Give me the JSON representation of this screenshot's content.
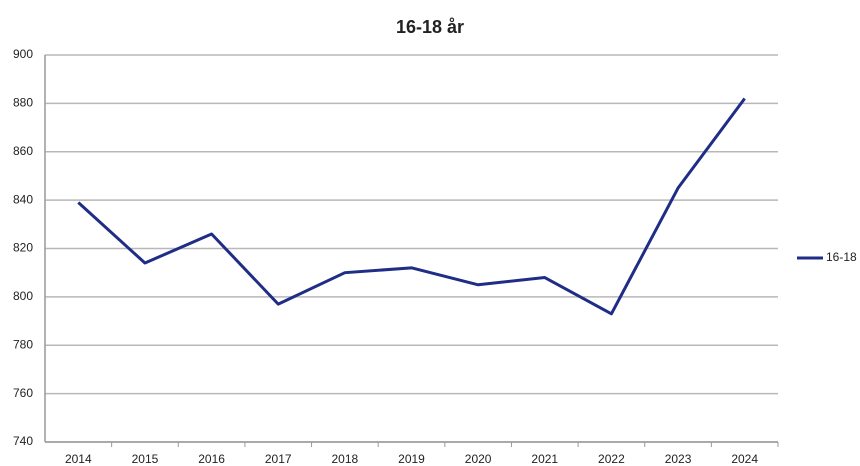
{
  "chart_data": {
    "type": "line",
    "title": "16-18 år",
    "categories": [
      "2014",
      "2015",
      "2016",
      "2017",
      "2018",
      "2019",
      "2020",
      "2021",
      "2022",
      "2023",
      "2024"
    ],
    "series": [
      {
        "name": "16-18",
        "color": "#1f2d86",
        "values": [
          839,
          814,
          826,
          797,
          810,
          812,
          805,
          808,
          793,
          845,
          882
        ]
      }
    ],
    "ylim": [
      740,
      900
    ],
    "yticks": [
      740,
      760,
      780,
      800,
      820,
      840,
      860,
      880,
      900
    ],
    "grid": true,
    "legend": "right"
  }
}
